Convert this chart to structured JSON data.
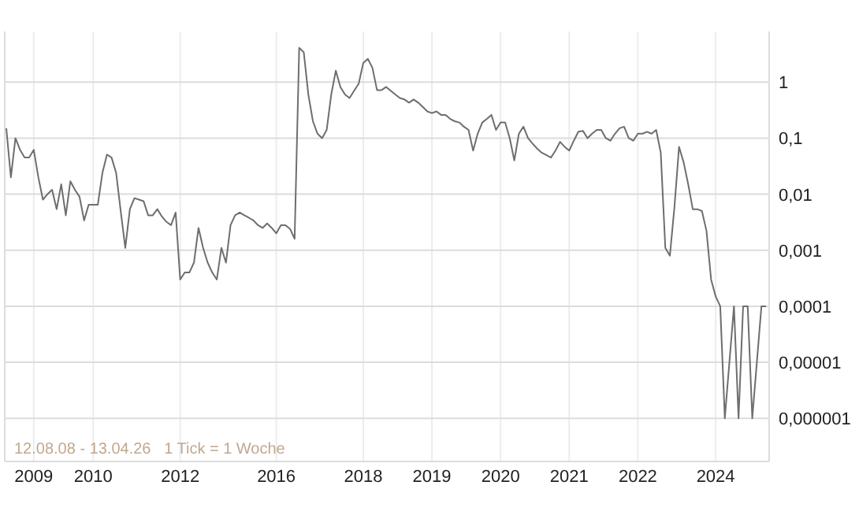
{
  "chart_data": {
    "type": "line",
    "categories": [
      null,
      null,
      null,
      null,
      null,
      null,
      "2009",
      null,
      null,
      null,
      null,
      null,
      null,
      null,
      null,
      null,
      null,
      null,
      null,
      "2010",
      null,
      null,
      null,
      null,
      null,
      null,
      null,
      null,
      null,
      null,
      null,
      null,
      null,
      null,
      null,
      null,
      null,
      null,
      "2012",
      null,
      null,
      null,
      null,
      null,
      null,
      null,
      null,
      null,
      null,
      null,
      null,
      null,
      null,
      null,
      null,
      null,
      null,
      null,
      null,
      "2016",
      null,
      null,
      null,
      null,
      null,
      null,
      null,
      null,
      null,
      null,
      null,
      null,
      null,
      null,
      null,
      null,
      null,
      null,
      "2018",
      null,
      null,
      null,
      null,
      null,
      null,
      null,
      null,
      null,
      null,
      null,
      null,
      null,
      null,
      "2019",
      null,
      null,
      null,
      null,
      null,
      null,
      null,
      null,
      null,
      null,
      null,
      null,
      null,
      null,
      "2020",
      null,
      null,
      null,
      null,
      null,
      null,
      null,
      null,
      null,
      null,
      null,
      null,
      null,
      null,
      "2021",
      null,
      null,
      null,
      null,
      null,
      null,
      null,
      null,
      null,
      null,
      null,
      null,
      null,
      null,
      "2022",
      null,
      null,
      null,
      null,
      null,
      null,
      null,
      null,
      null,
      null,
      null,
      null,
      null,
      null,
      null,
      null,
      "2024",
      null,
      null,
      null,
      null,
      null,
      null,
      null,
      null,
      null,
      null,
      null
    ],
    "series": [
      {
        "color": "#6e6e6e",
        "values": [
          0.15,
          0.02,
          0.1,
          0.062,
          0.045,
          0.045,
          0.062,
          0.02,
          0.008,
          0.01,
          0.012,
          0.0054,
          0.015,
          0.0042,
          0.017,
          0.012,
          0.009,
          0.0034,
          0.0065,
          0.0065,
          0.0065,
          0.024,
          0.051,
          0.045,
          0.024,
          0.005,
          0.0011,
          0.0054,
          0.0085,
          0.008,
          0.0075,
          0.0042,
          0.0042,
          0.0054,
          0.004,
          0.0032,
          0.0028,
          0.0047,
          0.0003,
          0.0004,
          0.0004,
          0.0006,
          0.0025,
          0.0011,
          0.0006,
          0.0004,
          0.0003,
          0.0011,
          0.0006,
          0.0028,
          0.0042,
          0.0047,
          0.0042,
          0.0038,
          0.0034,
          0.0028,
          0.0025,
          0.003,
          0.0025,
          0.002,
          0.0028,
          0.0028,
          0.0024,
          0.0016,
          4.1,
          3.4,
          0.6,
          0.2,
          0.12,
          0.1,
          0.14,
          0.6,
          1.6,
          0.82,
          0.6,
          0.52,
          0.7,
          0.94,
          2.2,
          2.6,
          1.8,
          0.72,
          0.72,
          0.82,
          0.7,
          0.6,
          0.52,
          0.49,
          0.43,
          0.49,
          0.43,
          0.36,
          0.3,
          0.28,
          0.3,
          0.26,
          0.26,
          0.22,
          0.2,
          0.19,
          0.16,
          0.14,
          0.06,
          0.12,
          0.19,
          0.22,
          0.26,
          0.14,
          0.19,
          0.19,
          0.1,
          0.04,
          0.12,
          0.16,
          0.1,
          0.08,
          0.065,
          0.055,
          0.05,
          0.045,
          0.06,
          0.086,
          0.07,
          0.06,
          0.09,
          0.13,
          0.135,
          0.1,
          0.12,
          0.14,
          0.14,
          0.1,
          0.09,
          0.12,
          0.15,
          0.16,
          0.1,
          0.09,
          0.12,
          0.12,
          0.13,
          0.12,
          0.14,
          0.055,
          0.0011,
          0.0008,
          0.006,
          0.07,
          0.037,
          0.015,
          0.0054,
          0.0054,
          0.005,
          0.0022,
          0.0003,
          0.00015,
          0.0001,
          1e-06,
          1e-05,
          0.0001,
          1e-06,
          0.0001,
          0.0001,
          1e-06,
          1e-05,
          0.0001,
          0.0001
        ]
      }
    ],
    "log": "y",
    "ylim": [
      1.7e-07,
      8
    ],
    "yticks": [
      {
        "value": 1,
        "label": "1"
      },
      {
        "value": 0.1,
        "label": "0,1"
      },
      {
        "value": 0.01,
        "label": "0,01"
      },
      {
        "value": 0.001,
        "label": "0,001"
      },
      {
        "value": 0.0001,
        "label": "0,0001"
      },
      {
        "value": 1e-05,
        "label": "0,00001"
      },
      {
        "value": 1e-06,
        "label": "0,000001"
      }
    ],
    "grid": true,
    "annotations": [
      "12.08.08 - 13.04.26   1 Tick = 1 Woche"
    ]
  }
}
